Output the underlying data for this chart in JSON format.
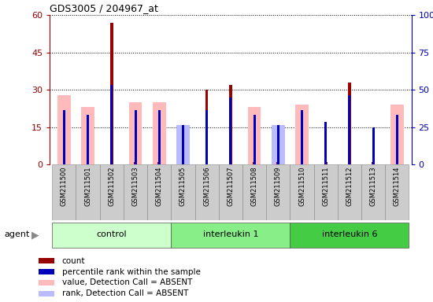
{
  "title": "GDS3005 / 204967_at",
  "samples": [
    "GSM211500",
    "GSM211501",
    "GSM211502",
    "GSM211503",
    "GSM211504",
    "GSM211505",
    "GSM211506",
    "GSM211507",
    "GSM211508",
    "GSM211509",
    "GSM211510",
    "GSM211511",
    "GSM211512",
    "GSM211513",
    "GSM211514"
  ],
  "groups": [
    {
      "label": "control",
      "start": 0,
      "end": 4,
      "color": "#ccffcc"
    },
    {
      "label": "interleukin 1",
      "start": 5,
      "end": 9,
      "color": "#99ee99"
    },
    {
      "label": "interleukin 6",
      "start": 10,
      "end": 14,
      "color": "#44dd44"
    }
  ],
  "red_bars": [
    1.0,
    1.0,
    57.0,
    1.0,
    1.0,
    1.0,
    30.0,
    32.0,
    1.0,
    1.0,
    1.0,
    1.0,
    33.0,
    1.0,
    1.0
  ],
  "blue_bars": [
    22.0,
    20.0,
    32.0,
    22.0,
    22.0,
    16.0,
    22.0,
    27.0,
    20.0,
    16.0,
    22.0,
    17.0,
    28.0,
    15.0,
    20.0
  ],
  "pink_bars": [
    28.0,
    23.0,
    0.0,
    25.0,
    25.0,
    0.0,
    0.0,
    0.0,
    23.0,
    0.0,
    24.0,
    0.0,
    0.0,
    0.0,
    24.0
  ],
  "lightblue_bars": [
    0.0,
    0.0,
    0.0,
    0.0,
    0.0,
    16.0,
    0.0,
    0.0,
    0.0,
    16.0,
    0.0,
    0.0,
    0.0,
    0.0,
    0.0
  ],
  "ylim_left": [
    0,
    60
  ],
  "yticks_left": [
    0,
    15,
    30,
    45,
    60
  ],
  "ylim_right": [
    0,
    100
  ],
  "yticks_right": [
    0,
    25,
    50,
    75,
    100
  ],
  "red_color": "#990000",
  "blue_color": "#0000bb",
  "pink_color": "#ffbbbb",
  "lightblue_color": "#bbbbff",
  "legend_labels": [
    "count",
    "percentile rank within the sample",
    "value, Detection Call = ABSENT",
    "rank, Detection Call = ABSENT"
  ]
}
